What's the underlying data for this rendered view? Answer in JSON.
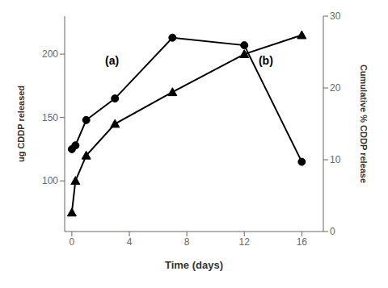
{
  "chart_data": {
    "type": "line",
    "xlabel": "Time (days)",
    "ylabel": "ug CDDP released",
    "y2label": "Cumulative % CDDP release",
    "x": [
      0,
      0.25,
      1,
      3,
      7,
      12,
      16
    ],
    "series": [
      {
        "color": "#000000",
        "marker": "circle",
        "values": [
          125,
          128,
          148,
          165,
          213,
          207,
          115
        ]
      },
      {
        "color": "#000000",
        "marker": "triangle",
        "values": [
          75,
          100,
          120,
          145,
          170,
          200,
          215
        ]
      }
    ],
    "xlim": [
      -0.5,
      17.5
    ],
    "xticks": [
      0,
      4,
      8,
      12,
      16
    ],
    "ylim": [
      60,
      230
    ],
    "yticks": [
      100,
      150,
      200
    ],
    "y2lim": [
      0,
      30
    ],
    "y2ticks": [
      0,
      10,
      20,
      30
    ],
    "grid": false,
    "annotations": [
      {
        "text": "(a)",
        "x": 2.8,
        "y": 195
      },
      {
        "text": "(b)",
        "x": 13.5,
        "y": 195
      }
    ]
  }
}
